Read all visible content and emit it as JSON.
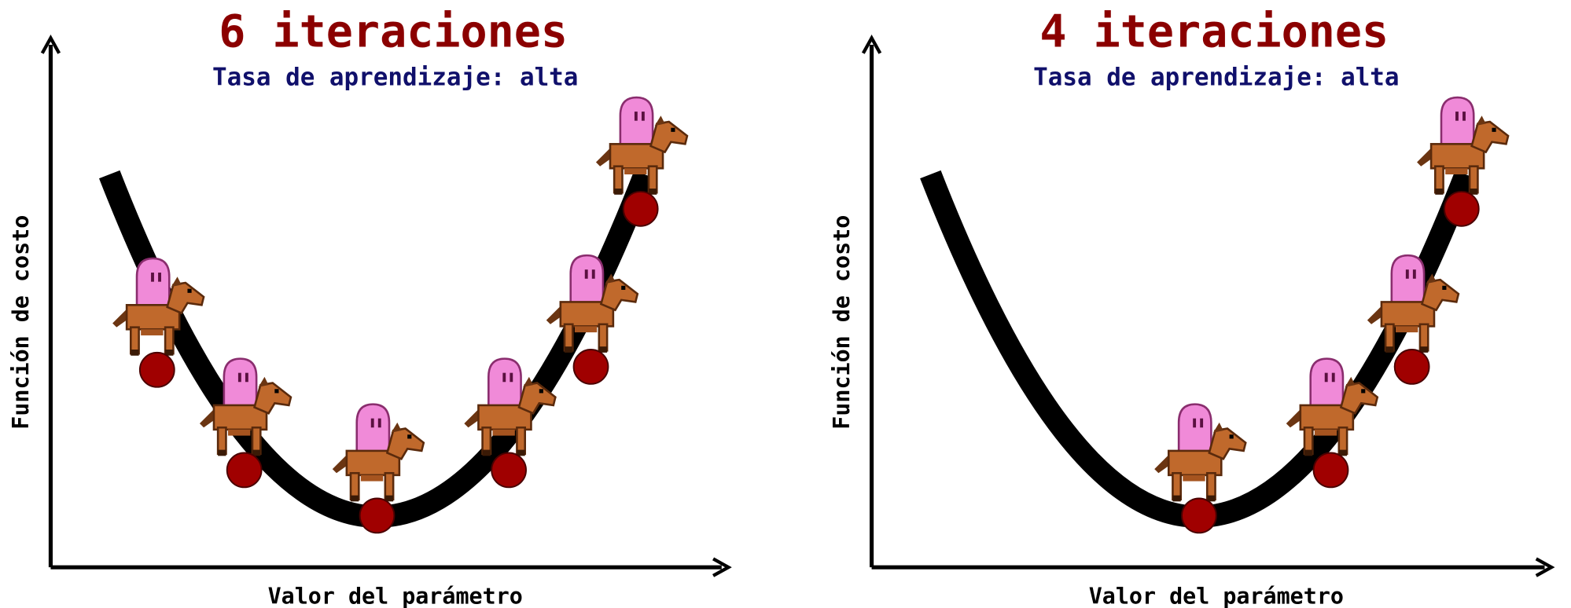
{
  "panels": [
    {
      "title": "6 iteraciones",
      "subtitle": "Tasa de aprendizaje: alta",
      "xlabel": "Valor del parámetro",
      "ylabel": "Función de costo"
    },
    {
      "title": "4 iteraciones",
      "subtitle": "Tasa de aprendizaje: alta",
      "xlabel": "Valor del parámetro",
      "ylabel": "Función de costo"
    }
  ]
}
